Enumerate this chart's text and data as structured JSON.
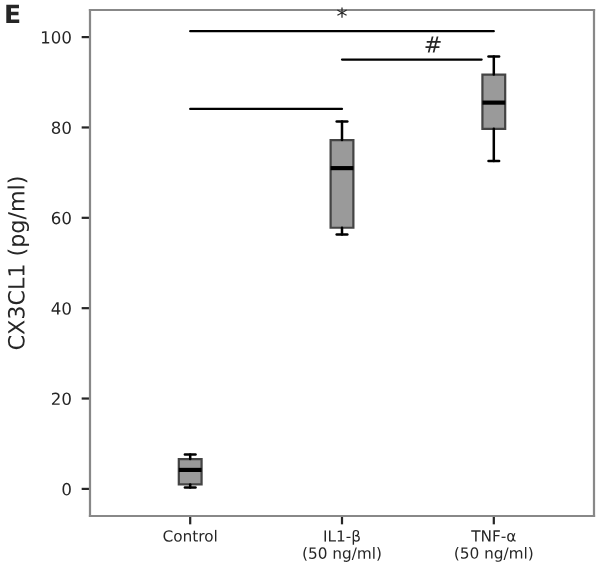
{
  "chart_data": {
    "type": "box",
    "ylabel": "CX3CL1 (pg/ml)",
    "categories": [
      "Control",
      "IL1-β\n(50 ng/ml)",
      "TNF-α\n(50 ng/ml)"
    ],
    "boxes": [
      {
        "low": 0.3,
        "q1": 1.0,
        "median": 4.2,
        "q3": 6.6,
        "high": 7.6
      },
      {
        "low": 56.3,
        "q1": 57.8,
        "median": 71,
        "q3": 77.2,
        "high": 81.3
      },
      {
        "low": 72.6,
        "q1": 79.7,
        "median": 85.5,
        "q3": 91.7,
        "high": 95.7
      }
    ],
    "color": "#9a9a9a",
    "ylim": [
      -6,
      106
    ],
    "yticks": [
      0,
      20,
      40,
      60,
      80,
      100
    ],
    "grid": false,
    "annotations": [
      "E",
      "*",
      "#"
    ]
  }
}
